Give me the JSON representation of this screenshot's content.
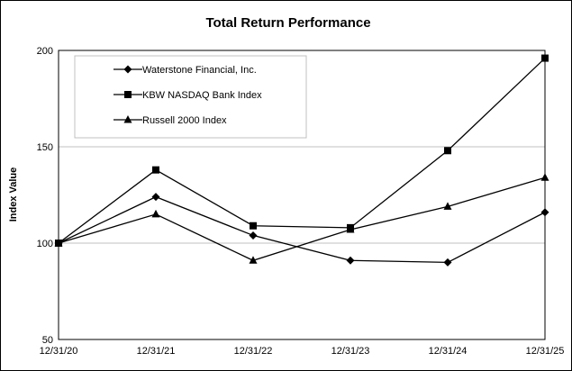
{
  "chart_data": {
    "type": "line",
    "title": "Total Return Performance",
    "xlabel": "",
    "ylabel": "Index Value",
    "categories": [
      "12/31/20",
      "12/31/21",
      "12/31/22",
      "12/31/23",
      "12/31/24",
      "12/31/25"
    ],
    "yticks": [
      "50",
      "100",
      "150",
      "200"
    ],
    "ylim": [
      50,
      200
    ],
    "grid": "horizontal",
    "legend_position": "top-left",
    "series": [
      {
        "name": "Waterstone Financial, Inc.",
        "marker": "diamond",
        "values": [
          100,
          124,
          104,
          91,
          90,
          116
        ]
      },
      {
        "name": "KBW NASDAQ Bank Index",
        "marker": "square",
        "values": [
          100,
          138,
          109,
          108,
          148,
          196
        ]
      },
      {
        "name": "Russell 2000 Index",
        "marker": "triangle",
        "values": [
          100,
          115,
          91,
          107,
          119,
          134
        ]
      }
    ],
    "colors": {
      "line": "#000000",
      "grid": "#c0c0c0"
    }
  }
}
